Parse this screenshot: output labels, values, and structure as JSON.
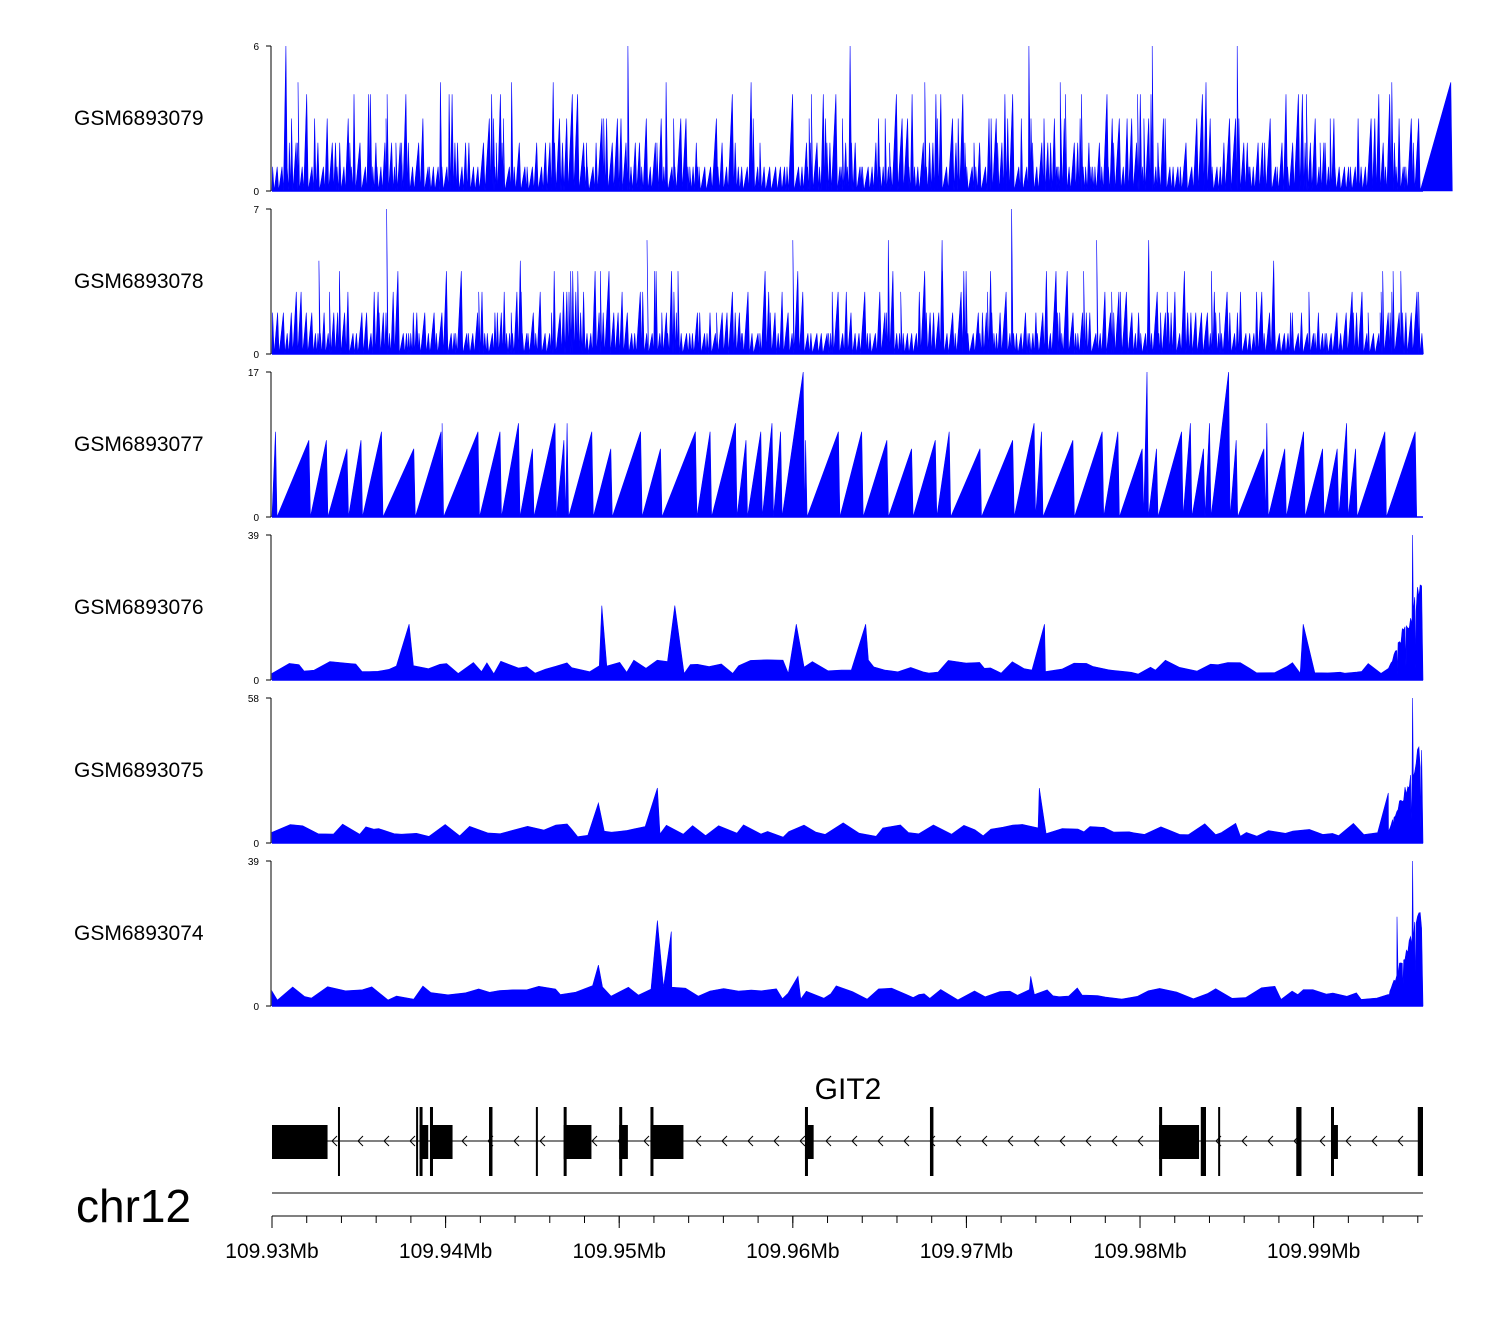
{
  "chart_data": {
    "type": "area",
    "title": "",
    "chromosome": "chr12",
    "x_range_mb": [
      109.93,
      109.9963
    ],
    "x_axis": {
      "tick_labels": [
        "109.93Mb",
        "109.94Mb",
        "109.95Mb",
        "109.96Mb",
        "109.97Mb",
        "109.98Mb",
        "109.99Mb"
      ],
      "tick_values_mb": [
        109.93,
        109.94,
        109.95,
        109.96,
        109.97,
        109.98,
        109.99
      ]
    },
    "series": [
      {
        "name": "GSM6893079",
        "ymax": 6,
        "ymin": 0,
        "color": "#0000ff",
        "profile": "sparse",
        "peaks": [
          [
            109.9308,
            6
          ],
          [
            109.9505,
            6
          ],
          [
            109.9633,
            6
          ],
          [
            109.9736,
            6
          ],
          [
            109.9807,
            6
          ],
          [
            109.9856,
            6
          ],
          [
            109.9315,
            4.5
          ],
          [
            109.9397,
            4.5
          ],
          [
            109.9438,
            4.5
          ],
          [
            109.9462,
            4.5
          ],
          [
            109.9527,
            4.5
          ],
          [
            109.9576,
            4.5
          ],
          [
            109.9676,
            4.5
          ],
          [
            109.9754,
            4.5
          ],
          [
            109.9838,
            4.5
          ],
          [
            109.9945,
            4.5
          ],
          [
            109.9979,
            4.5
          ]
        ]
      },
      {
        "name": "GSM6893078",
        "ymax": 7,
        "ymin": 0,
        "color": "#0000ff",
        "profile": "sparse",
        "peaks": [
          [
            109.9366,
            7
          ],
          [
            109.9726,
            7
          ],
          [
            109.9516,
            5.5
          ],
          [
            109.96,
            5.5
          ],
          [
            109.9655,
            5.5
          ],
          [
            109.9686,
            5.5
          ],
          [
            109.9775,
            5.5
          ],
          [
            109.9805,
            5.5
          ],
          [
            109.9877,
            4.5
          ],
          [
            109.9327,
            4.5
          ],
          [
            109.9443,
            4.5
          ]
        ]
      },
      {
        "name": "GSM6893077",
        "ymax": 17,
        "ymin": 0,
        "color": "#0000ff",
        "profile": "triangles",
        "peaks": [
          [
            109.9606,
            17
          ],
          [
            109.9804,
            17
          ],
          [
            109.9851,
            17
          ],
          [
            109.9398,
            11
          ],
          [
            109.9442,
            11
          ],
          [
            109.9463,
            11
          ],
          [
            109.947,
            11
          ],
          [
            109.9567,
            11
          ],
          [
            109.9588,
            11
          ],
          [
            109.9739,
            11
          ],
          [
            109.9829,
            11
          ],
          [
            109.984,
            11
          ],
          [
            109.9873,
            11
          ],
          [
            109.9919,
            11
          ]
        ]
      },
      {
        "name": "GSM6893076",
        "ymax": 39,
        "ymin": 0,
        "color": "#0000ff",
        "profile": "dense-right",
        "peaks": [
          [
            109.949,
            20
          ],
          [
            109.9532,
            20
          ],
          [
            109.9379,
            15
          ],
          [
            109.9602,
            15
          ],
          [
            109.9642,
            15
          ],
          [
            109.9745,
            15
          ],
          [
            109.9894,
            15
          ],
          [
            109.9957,
            39
          ]
        ]
      },
      {
        "name": "GSM6893075",
        "ymax": 58,
        "ymin": 0,
        "color": "#0000ff",
        "profile": "dense-right",
        "peaks": [
          [
            109.9522,
            22
          ],
          [
            109.9742,
            22
          ],
          [
            109.9488,
            16
          ],
          [
            109.9957,
            58
          ],
          [
            109.9943,
            20
          ]
        ]
      },
      {
        "name": "GSM6893074",
        "ymax": 39,
        "ymin": 0,
        "color": "#0000ff",
        "profile": "dense-right",
        "peaks": [
          [
            109.9522,
            23
          ],
          [
            109.953,
            20
          ],
          [
            109.9488,
            11
          ],
          [
            109.9603,
            8
          ],
          [
            109.9737,
            8
          ],
          [
            109.9957,
            39
          ],
          [
            109.9948,
            24
          ]
        ]
      }
    ],
    "gene": {
      "name": "GIT2",
      "strand": "-",
      "exons_mb": [
        [
          109.93,
          109.9332
        ],
        [
          109.9338,
          109.9339
        ],
        [
          109.9383,
          109.9384
        ],
        [
          109.9385,
          109.939
        ],
        [
          109.9391,
          109.9404
        ],
        [
          109.9425,
          109.9427
        ],
        [
          109.9452,
          109.9453
        ],
        [
          109.9468,
          109.9484
        ],
        [
          109.95,
          109.9505
        ],
        [
          109.9518,
          109.9537
        ],
        [
          109.9607,
          109.9612
        ],
        [
          109.9679,
          109.9681
        ],
        [
          109.9811,
          109.9834
        ],
        [
          109.9835,
          109.9838
        ],
        [
          109.9845,
          109.9846
        ],
        [
          109.989,
          109.9893
        ],
        [
          109.991,
          109.9914
        ],
        [
          109.996,
          109.9963
        ]
      ]
    }
  }
}
